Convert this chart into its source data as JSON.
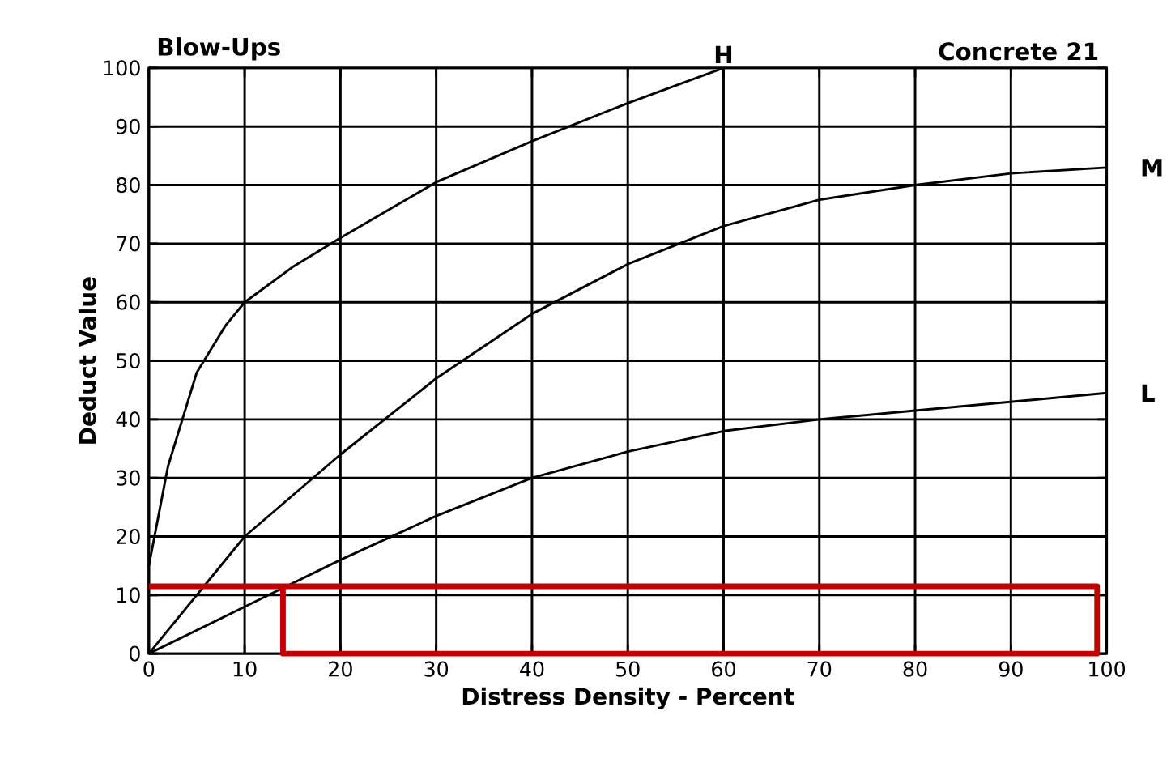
{
  "chart_data": {
    "type": "line",
    "title": "Blow-Ups",
    "subtitle": "Concrete 21",
    "xlabel": "Distress Density - Percent",
    "ylabel": "Deduct Value",
    "xlim": [
      0,
      100
    ],
    "ylim": [
      0,
      100
    ],
    "xticks": [
      0,
      10,
      20,
      30,
      40,
      50,
      60,
      70,
      80,
      90,
      100
    ],
    "yticks": [
      0,
      10,
      20,
      30,
      40,
      50,
      60,
      70,
      80,
      90,
      100
    ],
    "grid": true,
    "legend": false,
    "marker": "none",
    "line_style": "solid",
    "series": [
      {
        "name": "H",
        "color": "#000000",
        "x": [
          0,
          2,
          5,
          8,
          10,
          15,
          20,
          30,
          40,
          50,
          60
        ],
        "values": [
          15,
          32,
          48,
          56,
          60,
          66,
          71,
          80.5,
          87.5,
          94,
          100
        ]
      },
      {
        "name": "M",
        "color": "#000000",
        "x": [
          0,
          5,
          10,
          20,
          30,
          40,
          50,
          60,
          70,
          80,
          90,
          100
        ],
        "values": [
          0,
          10,
          20,
          34,
          47,
          58,
          66.5,
          73,
          77.5,
          80,
          82,
          83
        ]
      },
      {
        "name": "L",
        "color": "#000000",
        "x": [
          0,
          10,
          20,
          30,
          40,
          50,
          60,
          70,
          80,
          90,
          100
        ],
        "values": [
          0,
          8,
          16,
          23.5,
          30,
          34.5,
          38,
          40,
          41.5,
          43,
          44.5
        ]
      },
      {
        "color": "#c00000",
        "x": [
          0,
          99,
          99,
          14,
          14
        ],
        "values": [
          11.5,
          11.5,
          0,
          0,
          11.5
        ]
      }
    ]
  }
}
